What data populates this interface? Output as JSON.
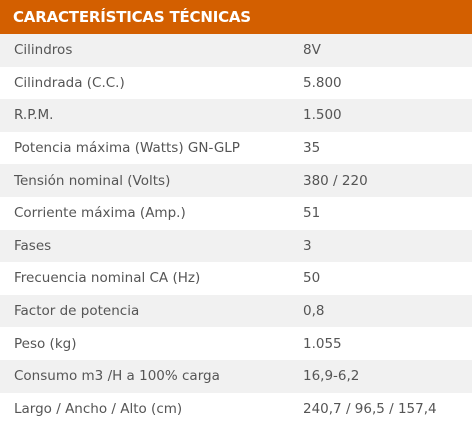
{
  "header": {
    "title": "CARACTERÍSTICAS TÉCNICAS"
  },
  "specs": [
    {
      "label": "Cilindros",
      "value": "8V"
    },
    {
      "label": "Cilindrada (C.C.)",
      "value": "5.800"
    },
    {
      "label": "R.P.M.",
      "value": "1.500"
    },
    {
      "label": "Potencia máxima (Watts) GN-GLP",
      "value": "35"
    },
    {
      "label": "Tensión nominal (Volts)",
      "value": "380 / 220"
    },
    {
      "label": "Corriente máxima (Amp.)",
      "value": "51"
    },
    {
      "label": "Fases",
      "value": "3"
    },
    {
      "label": "Frecuencia nominal CA (Hz)",
      "value": "50"
    },
    {
      "label": "Factor de potencia",
      "value": "0,8"
    },
    {
      "label": "Peso (kg)",
      "value": "1.055"
    },
    {
      "label": "Consumo m3 /H a 100% carga",
      "value": "16,9-6,2"
    },
    {
      "label": "Largo / Ancho / Alto (cm)",
      "value": "240,7 / 96,5 / 157,4"
    }
  ],
  "colors": {
    "header_bg": "#d35f00",
    "header_text": "#ffffff",
    "row_stripe": "#f1f1f1",
    "text": "#555555"
  }
}
